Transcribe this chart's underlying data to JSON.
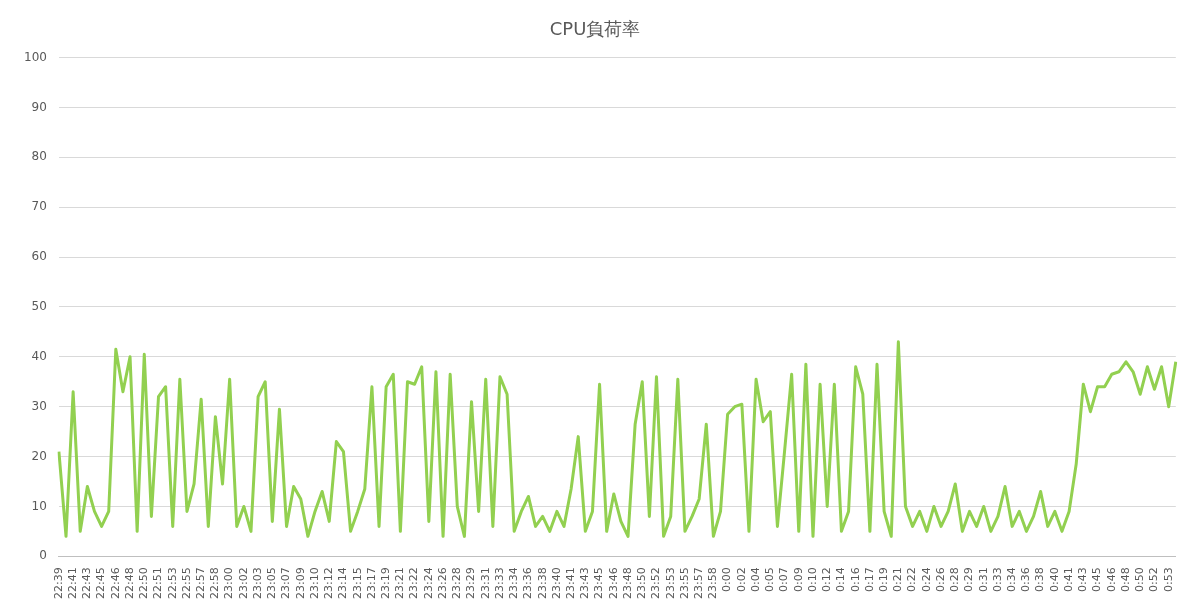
{
  "chart_data": {
    "type": "line",
    "title": "CPU負荷率",
    "categories": [
      "22:39",
      null,
      "22:41",
      null,
      "22:43",
      null,
      "22:45",
      null,
      "22:46",
      null,
      "22:48",
      null,
      "22:50",
      null,
      "22:51",
      null,
      "22:53",
      null,
      "22:55",
      null,
      "22:57",
      null,
      "22:58",
      null,
      "23:00",
      null,
      "23:02",
      null,
      "23:03",
      null,
      "23:05",
      null,
      "23:07",
      null,
      "23:09",
      null,
      "23:10",
      null,
      "23:12",
      null,
      "23:14",
      null,
      "23:15",
      null,
      "23:17",
      null,
      "23:19",
      null,
      "23:21",
      null,
      "23:22",
      null,
      "23:24",
      null,
      "23:26",
      null,
      "23:28",
      null,
      "23:29",
      null,
      "23:31",
      null,
      "23:33",
      null,
      "23:34",
      null,
      "23:36",
      null,
      "23:38",
      null,
      "23:40",
      null,
      "23:41",
      null,
      "23:43",
      null,
      "23:45",
      null,
      "23:46",
      null,
      "23:48",
      null,
      "23:50",
      null,
      "23:52",
      null,
      "23:53",
      null,
      "23:55",
      null,
      "23:57",
      null,
      "23:58",
      null,
      "0:00",
      null,
      "0:02",
      null,
      "0:04",
      null,
      "0:05",
      null,
      "0:07",
      null,
      "0:09",
      null,
      "0:10",
      null,
      "0:12",
      null,
      "0:14",
      null,
      "0:16",
      null,
      "0:17",
      null,
      "0:19",
      null,
      "0:21",
      null,
      "0:22",
      null,
      "0:24",
      null,
      "0:26",
      null,
      "0:28",
      null,
      "0:29",
      null,
      "0:31",
      null,
      "0:33",
      null,
      "0:34",
      null,
      "0:36",
      null,
      "0:38",
      null,
      "0:40",
      null,
      "0:41",
      null,
      "0:43",
      null,
      "0:45",
      null,
      "0:46",
      null,
      "0:48",
      null,
      "0:50",
      null,
      "0:52",
      null,
      "0:53",
      null
    ],
    "series": [
      {
        "color": "#92d050",
        "values": [
          21,
          4,
          33,
          5,
          14,
          9,
          6,
          9,
          41.5,
          33,
          40,
          5,
          40.5,
          8,
          32,
          34,
          6,
          35.5,
          9,
          14.5,
          31.5,
          6,
          28,
          14.5,
          35.5,
          6,
          10,
          5,
          32,
          35,
          7,
          29.5,
          6,
          14,
          11.5,
          4,
          9,
          13,
          7,
          23,
          21,
          5,
          9,
          13.5,
          34,
          6,
          34,
          36.5,
          5,
          35,
          34.5,
          38,
          7,
          37,
          4,
          36.5,
          10,
          4,
          31,
          9,
          35.5,
          6,
          36,
          32.5,
          5,
          9,
          12,
          6,
          8,
          5,
          9,
          6,
          13.5,
          24,
          5,
          9,
          34.5,
          5,
          12.5,
          7,
          4,
          26.5,
          35,
          8,
          36,
          4,
          8,
          35.5,
          5,
          8,
          11.5,
          26.5,
          4,
          9,
          28.5,
          30,
          30.5,
          5,
          35.5,
          27,
          29,
          6,
          21,
          36.5,
          5,
          38.5,
          4,
          34.5,
          10,
          34.5,
          5,
          9,
          38,
          32.5,
          5,
          38.5,
          9,
          4,
          43,
          10,
          6,
          9,
          5,
          10,
          6,
          9,
          14.5,
          5,
          9,
          6,
          10,
          5,
          8,
          14,
          6,
          9,
          5,
          8,
          13,
          6,
          9,
          5,
          9,
          18.5,
          34.5,
          29,
          34,
          34,
          36.5,
          37,
          39,
          37,
          32.5,
          38,
          33.5,
          38,
          30,
          39
        ]
      }
    ],
    "ylim": [
      0,
      100
    ],
    "yticks": [
      0,
      10,
      20,
      30,
      40,
      50,
      60,
      70,
      80,
      90,
      100
    ],
    "grid": "y",
    "legend": false,
    "marker": "none",
    "line_style": "solid"
  }
}
